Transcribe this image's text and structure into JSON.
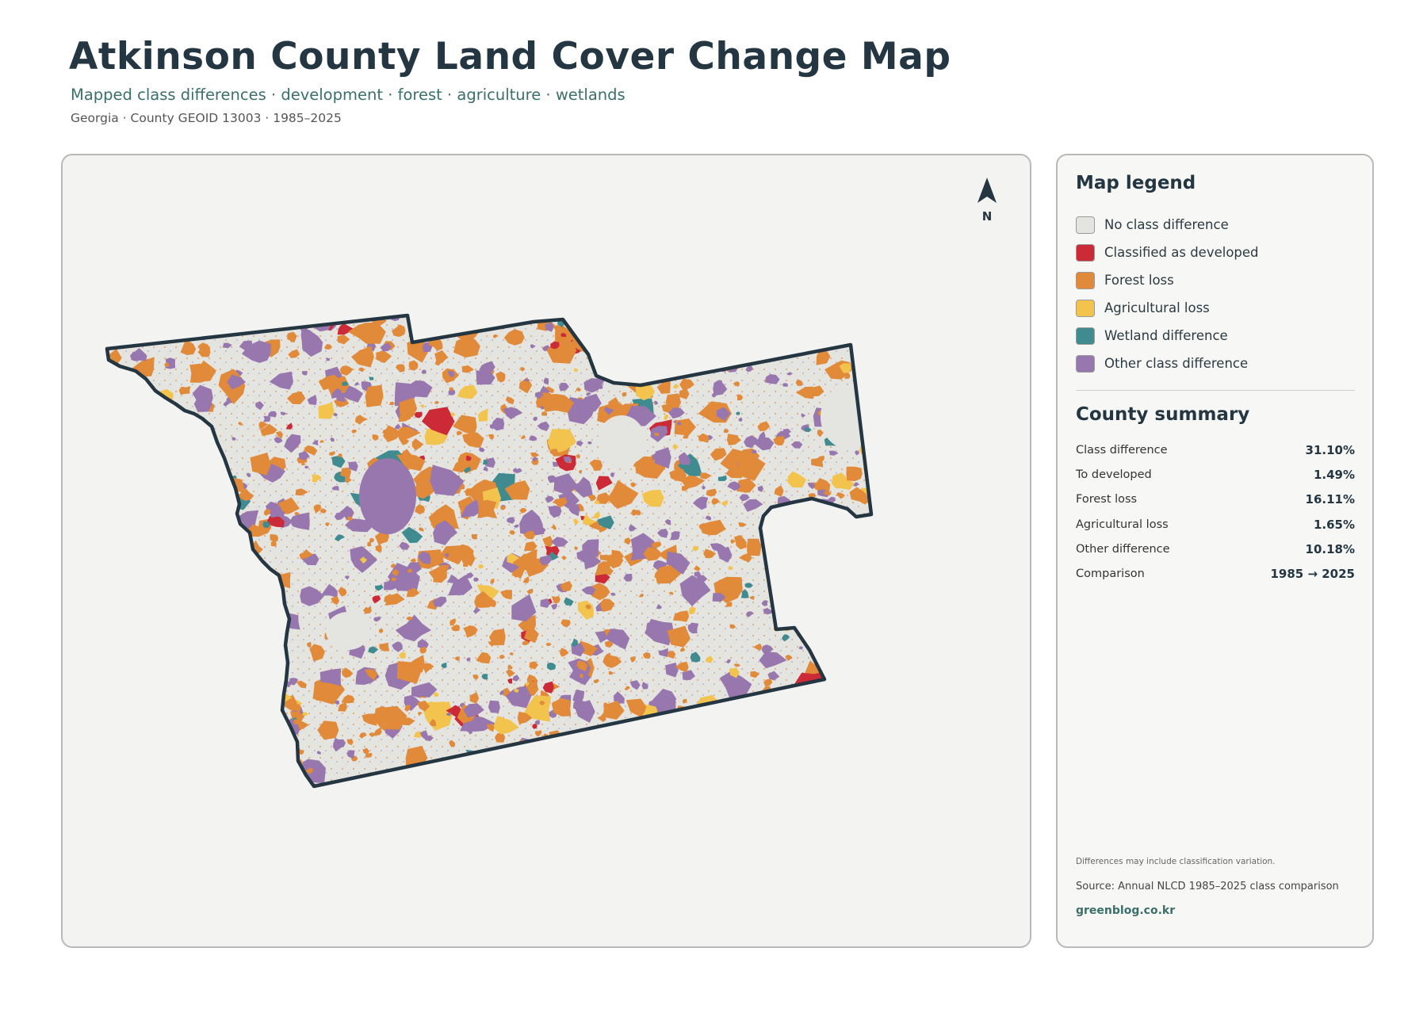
{
  "header": {
    "title": "Atkinson County Land Cover Change Map",
    "subtitle": "Mapped class differences · development · forest · agriculture · wetlands",
    "meta": "Georgia · County GEOID 13003 · 1985–2025"
  },
  "map": {
    "north_label": "N",
    "outline_color": "#243642",
    "base_color": "#e4e4e1"
  },
  "legend": {
    "title": "Map legend",
    "items": [
      {
        "label": "No class difference",
        "color": "#e4e4e1"
      },
      {
        "label": "Classified as developed",
        "color": "#cc2a36"
      },
      {
        "label": "Forest loss",
        "color": "#e08a3a"
      },
      {
        "label": "Agricultural loss",
        "color": "#f2c44d"
      },
      {
        "label": "Wetland difference",
        "color": "#3f8b8f"
      },
      {
        "label": "Other class difference",
        "color": "#9777ad"
      }
    ]
  },
  "summary": {
    "title": "County summary",
    "rows": [
      {
        "key": "Class difference",
        "value": "31.10%"
      },
      {
        "key": "To developed",
        "value": "1.49%"
      },
      {
        "key": "Forest loss",
        "value": "16.11%"
      },
      {
        "key": "Agricultural loss",
        "value": "1.65%"
      },
      {
        "key": "Other difference",
        "value": "10.18%"
      },
      {
        "key": "Comparison",
        "value": "1985 → 2025"
      }
    ]
  },
  "footer": {
    "note": "Differences may include classification variation.",
    "source": "Source: Annual NLCD 1985–2025 class comparison",
    "brand": "greenblog.co.kr"
  }
}
